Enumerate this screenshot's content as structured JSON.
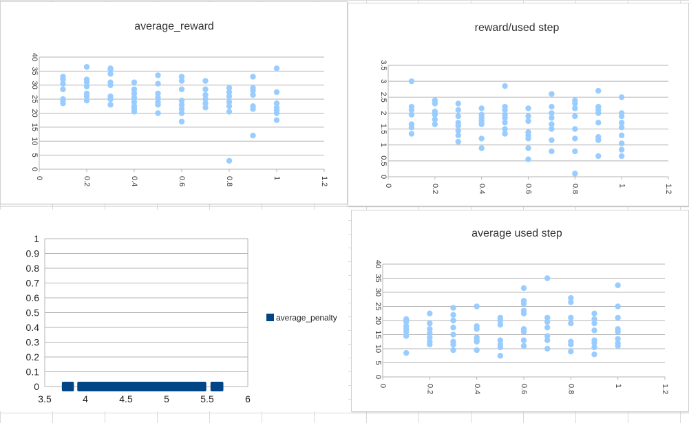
{
  "colors": {
    "scatter_point": "#99ccff",
    "penalty_marker": "#004586",
    "gridline": "#b3b3b3"
  },
  "chart_data": [
    {
      "id": "average_reward",
      "type": "scatter",
      "title": "average_reward",
      "xlabel": "",
      "ylabel": "",
      "xlim": [
        0,
        1.2
      ],
      "ylim": [
        0,
        40
      ],
      "x_ticks": [
        "0",
        "0.2",
        "0.4",
        "0.6",
        "0.8",
        "1",
        "1.2"
      ],
      "y_ticks": [
        "0",
        "5",
        "10",
        "15",
        "20",
        "25",
        "30",
        "35",
        "40"
      ],
      "grid": "horizontal",
      "series": [
        {
          "x": 0.1,
          "values": [
            33,
            32,
            30.5,
            28.5,
            25,
            24.5,
            23.5
          ]
        },
        {
          "x": 0.2,
          "values": [
            36.5,
            32,
            31,
            29.5,
            27,
            26,
            24.5
          ]
        },
        {
          "x": 0.3,
          "values": [
            36,
            35.5,
            34,
            31,
            30,
            26,
            25,
            23
          ]
        },
        {
          "x": 0.4,
          "values": [
            31,
            28.5,
            27,
            25.5,
            24,
            22.5,
            21.5,
            20.5
          ]
        },
        {
          "x": 0.5,
          "values": [
            33.5,
            30.5,
            27,
            25.5,
            24,
            23,
            20
          ]
        },
        {
          "x": 0.6,
          "values": [
            33,
            31.5,
            28.5,
            24.5,
            23,
            21.5,
            20,
            17
          ]
        },
        {
          "x": 0.7,
          "values": [
            31.5,
            28.5,
            26.5,
            25,
            23.5,
            22
          ]
        },
        {
          "x": 0.8,
          "values": [
            29,
            27.5,
            26,
            24,
            22.5,
            20.5,
            3
          ]
        },
        {
          "x": 0.9,
          "values": [
            33,
            29,
            28,
            26.5,
            22.5,
            21.5,
            12
          ]
        },
        {
          "x": 1.0,
          "values": [
            36,
            27.5,
            23.5,
            22,
            21,
            20,
            17.5
          ]
        }
      ]
    },
    {
      "id": "reward_per_used_step",
      "type": "scatter",
      "title": "reward/used step",
      "xlabel": "",
      "ylabel": "",
      "xlim": [
        0,
        1.2
      ],
      "ylim": [
        0,
        3.5
      ],
      "x_ticks": [
        "0",
        "0.2",
        "0.4",
        "0.6",
        "0.8",
        "1",
        "1.2"
      ],
      "y_ticks": [
        "0",
        "0.5",
        "1",
        "1.5",
        "2",
        "2.5",
        "3",
        "3.5"
      ],
      "grid": "horizontal",
      "series": [
        {
          "x": 0.1,
          "values": [
            3.0,
            2.2,
            2.1,
            1.95,
            1.65,
            1.55,
            1.35
          ]
        },
        {
          "x": 0.2,
          "values": [
            2.4,
            2.3,
            2.05,
            1.95,
            1.8,
            1.65
          ]
        },
        {
          "x": 0.3,
          "values": [
            2.3,
            2.1,
            1.9,
            1.7,
            1.6,
            1.45,
            1.3,
            1.1
          ]
        },
        {
          "x": 0.4,
          "values": [
            2.15,
            1.95,
            1.85,
            1.75,
            1.65,
            1.2,
            0.9
          ]
        },
        {
          "x": 0.5,
          "values": [
            2.85,
            2.2,
            2.1,
            1.95,
            1.85,
            1.7,
            1.5,
            1.35
          ]
        },
        {
          "x": 0.6,
          "values": [
            2.15,
            1.9,
            1.75,
            1.4,
            1.3,
            1.2,
            0.9,
            0.55
          ]
        },
        {
          "x": 0.7,
          "values": [
            2.6,
            2.2,
            2.0,
            1.85,
            1.65,
            1.5,
            1.15,
            0.8
          ]
        },
        {
          "x": 0.8,
          "values": [
            2.4,
            2.3,
            2.15,
            1.9,
            1.5,
            1.2,
            0.8,
            0.1
          ]
        },
        {
          "x": 0.9,
          "values": [
            2.7,
            2.2,
            2.1,
            2.0,
            1.7,
            1.25,
            1.15,
            0.65
          ]
        },
        {
          "x": 1.0,
          "values": [
            2.5,
            2.0,
            1.9,
            1.7,
            1.55,
            1.3,
            1.05,
            0.85,
            0.65
          ]
        }
      ]
    },
    {
      "id": "average_penalty",
      "type": "scatter",
      "title": "",
      "xlabel": "",
      "ylabel": "",
      "xlim": [
        3.5,
        6
      ],
      "ylim": [
        0,
        1
      ],
      "x_ticks": [
        "3.5",
        "4",
        "4.5",
        "5",
        "5.5",
        "6"
      ],
      "y_ticks": [
        "0",
        "0.1",
        "0.2",
        "0.3",
        "0.4",
        "0.5",
        "0.6",
        "0.7",
        "0.8",
        "0.9",
        "1"
      ],
      "grid": "horizontal",
      "legend": "right",
      "series": [
        {
          "name": "average_penalty",
          "x": [
            3.77,
            3.8,
            3.96,
            4.0,
            4.04,
            4.08,
            4.12,
            4.16,
            4.2,
            4.24,
            4.28,
            4.32,
            4.36,
            4.4,
            4.44,
            4.48,
            4.52,
            4.56,
            4.6,
            4.64,
            4.68,
            4.72,
            4.76,
            4.8,
            4.84,
            4.88,
            4.92,
            4.96,
            5.0,
            5.04,
            5.08,
            5.12,
            5.16,
            5.2,
            5.24,
            5.28,
            5.32,
            5.36,
            5.4,
            5.43,
            5.6,
            5.64
          ],
          "y": 0
        }
      ]
    },
    {
      "id": "average_used_step",
      "type": "scatter",
      "title": "average used step",
      "xlabel": "",
      "ylabel": "",
      "xlim": [
        0,
        1.2
      ],
      "ylim": [
        0,
        40
      ],
      "x_ticks": [
        "0",
        "0.2",
        "0.4",
        "0.6",
        "0.8",
        "1",
        "1.2"
      ],
      "y_ticks": [
        "0",
        "5",
        "10",
        "15",
        "20",
        "25",
        "30",
        "35",
        "40"
      ],
      "grid": "horizontal",
      "series": [
        {
          "x": 0.1,
          "values": [
            20.5,
            19.5,
            18,
            17,
            16,
            14.5,
            8.5
          ]
        },
        {
          "x": 0.2,
          "values": [
            22.5,
            19,
            17,
            15.5,
            14,
            12.5,
            11.5
          ]
        },
        {
          "x": 0.3,
          "values": [
            24.5,
            22,
            20,
            17.5,
            15,
            12.5,
            11.5,
            9.5
          ]
        },
        {
          "x": 0.4,
          "values": [
            25,
            18,
            17,
            14,
            13,
            12.5,
            9.5
          ]
        },
        {
          "x": 0.5,
          "values": [
            21,
            20,
            18.5,
            13,
            11.5,
            10.5,
            7.5
          ]
        },
        {
          "x": 0.6,
          "values": [
            31.5,
            27,
            26,
            23.5,
            22.5,
            17,
            16,
            13,
            11
          ]
        },
        {
          "x": 0.7,
          "values": [
            35,
            21,
            19.5,
            17.5,
            14.5,
            13,
            10
          ]
        },
        {
          "x": 0.8,
          "values": [
            28,
            26.5,
            21,
            19,
            12.5,
            11.5,
            9
          ]
        },
        {
          "x": 0.9,
          "values": [
            22.5,
            20.5,
            19,
            16.5,
            13,
            12,
            10.5,
            8
          ]
        },
        {
          "x": 1.0,
          "values": [
            32.5,
            25,
            21,
            17,
            16,
            13.5,
            12,
            11
          ]
        }
      ]
    }
  ]
}
